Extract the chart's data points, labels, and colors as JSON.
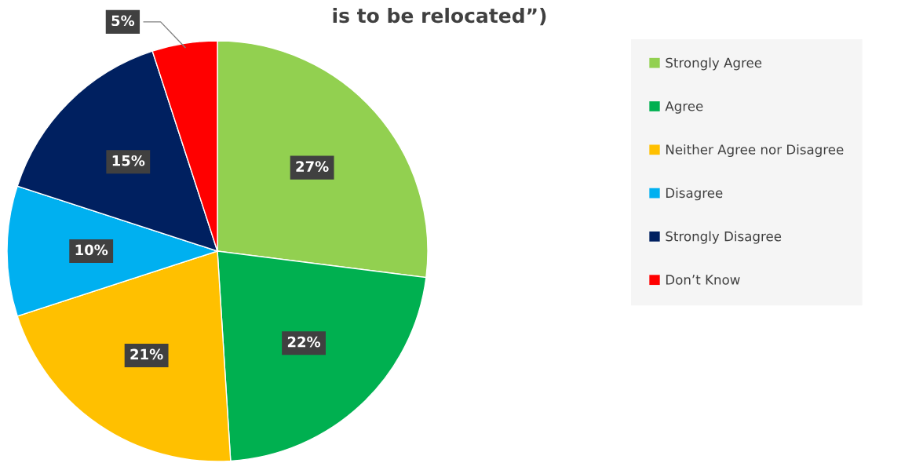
{
  "chart_data": {
    "type": "pie",
    "title": "is to be relocated”)",
    "categories": [
      "Strongly Agree",
      "Agree",
      "Neither Agree nor Disagree",
      "Disagree",
      "Strongly Disagree",
      "Don’t Know"
    ],
    "values": [
      27,
      22,
      21,
      10,
      15,
      5
    ],
    "colors": [
      "#92d050",
      "#00b050",
      "#ffc000",
      "#00b0f0",
      "#002060",
      "#ff0000"
    ],
    "value_labels": [
      "27%",
      "22%",
      "21%",
      "10%",
      "15%",
      "5%"
    ],
    "legend": "right"
  }
}
